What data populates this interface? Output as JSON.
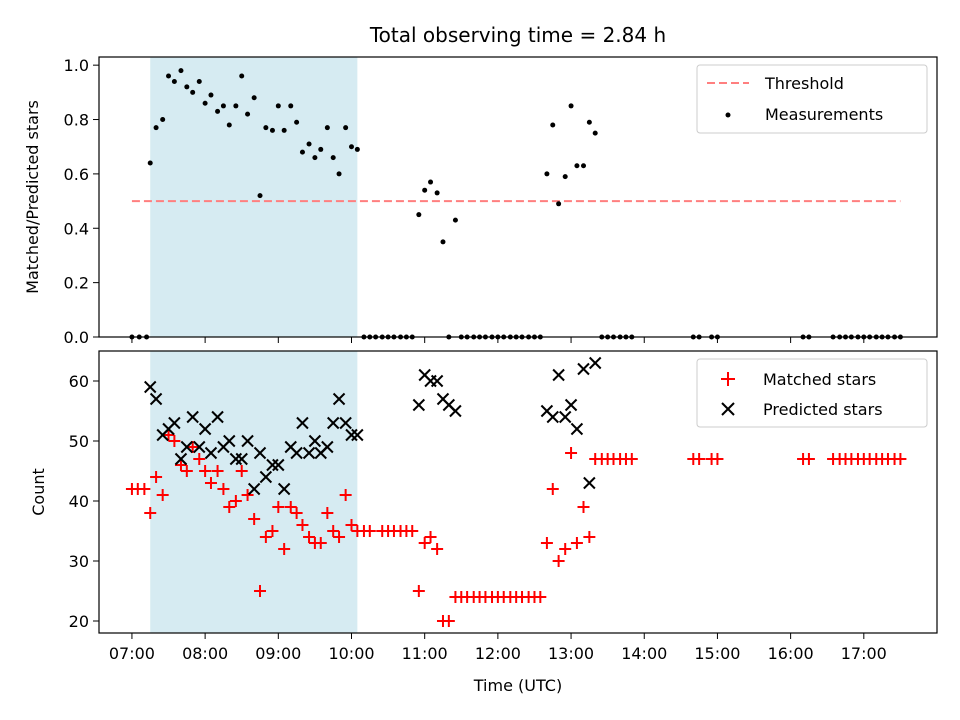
{
  "chart_data": {
    "title": "Total observing time = 2.84 h",
    "xlabel": "Time (UTC)",
    "x_ticks": [
      "07:00",
      "08:00",
      "09:00",
      "10:00",
      "11:00",
      "12:00",
      "13:00",
      "14:00",
      "15:00",
      "16:00",
      "17:00"
    ],
    "x_range_hours": [
      6.55,
      18.0
    ],
    "shaded_interval_hours": [
      7.25,
      10.08
    ],
    "colors": {
      "shade": "#add8e6",
      "threshold": "#ff7f7f",
      "matched": "#ff0000",
      "predicted": "#000000",
      "measurement": "#000000"
    },
    "panels": [
      {
        "type": "scatter",
        "ylabel": "Matched/Predicted stars",
        "ylim": [
          0,
          1.03
        ],
        "y_ticks": [
          "0.0",
          "0.2",
          "0.4",
          "0.6",
          "0.8",
          "1.0"
        ],
        "legend_position": "upper-right",
        "series": [
          {
            "name": "Threshold",
            "style": "dashed-line",
            "x": [
              7.0,
              17.5
            ],
            "y": [
              0.5,
              0.5
            ]
          },
          {
            "name": "Measurements",
            "style": "dot",
            "x": [
              7.0,
              7.1,
              7.2,
              7.25,
              7.33,
              7.42,
              7.5,
              7.58,
              7.67,
              7.75,
              7.83,
              7.92,
              8.0,
              8.08,
              8.17,
              8.25,
              8.33,
              8.42,
              8.5,
              8.58,
              8.67,
              8.75,
              8.83,
              8.92,
              9.0,
              9.08,
              9.17,
              9.25,
              9.33,
              9.42,
              9.5,
              9.58,
              9.67,
              9.75,
              9.83,
              9.92,
              10.0,
              10.08,
              10.17,
              10.25,
              10.33,
              10.42,
              10.5,
              10.58,
              10.67,
              10.75,
              10.83,
              10.92,
              11.0,
              11.08,
              11.17,
              11.25,
              11.33,
              11.42,
              11.5,
              11.58,
              11.67,
              11.75,
              11.83,
              11.92,
              12.0,
              12.08,
              12.17,
              12.25,
              12.33,
              12.42,
              12.5,
              12.58,
              12.67,
              12.75,
              12.83,
              12.92,
              13.0,
              13.08,
              13.17,
              13.25,
              13.33,
              13.42,
              13.5,
              13.58,
              13.67,
              13.75,
              13.83,
              14.67,
              14.75,
              14.92,
              15.0,
              16.17,
              16.25,
              16.58,
              16.67,
              16.75,
              16.83,
              16.92,
              17.0,
              17.08,
              17.17,
              17.25,
              17.33,
              17.42,
              17.5
            ],
            "y": [
              0,
              0,
              0,
              0.64,
              0.77,
              0.8,
              0.96,
              0.94,
              0.98,
              0.92,
              0.9,
              0.94,
              0.86,
              0.89,
              0.83,
              0.85,
              0.78,
              0.85,
              0.96,
              0.82,
              0.88,
              0.52,
              0.77,
              0.76,
              0.85,
              0.76,
              0.85,
              0.79,
              0.68,
              0.71,
              0.66,
              0.69,
              0.77,
              0.66,
              0.6,
              0.77,
              0.7,
              0.69,
              0,
              0,
              0,
              0,
              0,
              0,
              0,
              0,
              0,
              0.45,
              0.54,
              0.57,
              0.53,
              0.35,
              0,
              0.43,
              0,
              0,
              0,
              0,
              0,
              0,
              0,
              0,
              0,
              0,
              0,
              0,
              0,
              0,
              0.6,
              0.78,
              0.49,
              0.59,
              0.85,
              0.63,
              0.63,
              0.79,
              0.75,
              0,
              0,
              0,
              0,
              0,
              0,
              0,
              0,
              0,
              0,
              0,
              0,
              0,
              0,
              0,
              0,
              0,
              0,
              0,
              0,
              0,
              0,
              0,
              0
            ]
          }
        ]
      },
      {
        "type": "scatter",
        "ylabel": "Count",
        "ylim": [
          18,
          65
        ],
        "y_ticks": [
          "20",
          "30",
          "40",
          "50",
          "60"
        ],
        "legend_position": "upper-right",
        "series": [
          {
            "name": "Matched stars",
            "marker": "+",
            "x": [
              7.0,
              7.08,
              7.17,
              7.25,
              7.33,
              7.42,
              7.5,
              7.58,
              7.67,
              7.75,
              7.83,
              7.92,
              8.0,
              8.08,
              8.17,
              8.25,
              8.33,
              8.42,
              8.5,
              8.58,
              8.67,
              8.75,
              8.83,
              8.92,
              9.0,
              9.08,
              9.17,
              9.25,
              9.33,
              9.42,
              9.5,
              9.58,
              9.67,
              9.75,
              9.83,
              9.92,
              10.0,
              10.08,
              10.17,
              10.25,
              10.42,
              10.5,
              10.58,
              10.67,
              10.75,
              10.83,
              10.92,
              11.0,
              11.08,
              11.17,
              11.25,
              11.33,
              11.42,
              11.5,
              11.58,
              11.67,
              11.75,
              11.83,
              11.92,
              12.0,
              12.08,
              12.17,
              12.25,
              12.33,
              12.42,
              12.5,
              12.58,
              12.67,
              12.75,
              12.83,
              12.92,
              13.0,
              13.08,
              13.17,
              13.25,
              13.33,
              13.42,
              13.5,
              13.58,
              13.67,
              13.75,
              13.83,
              14.67,
              14.75,
              14.92,
              15.0,
              16.17,
              16.25,
              16.58,
              16.67,
              16.75,
              16.83,
              16.92,
              17.0,
              17.08,
              17.17,
              17.25,
              17.33,
              17.42,
              17.5
            ],
            "y": [
              42,
              42,
              42,
              38,
              44,
              41,
              51,
              50,
              46,
              45,
              49,
              47,
              45,
              43,
              45,
              42,
              39,
              40,
              45,
              41,
              37,
              25,
              34,
              35,
              39,
              32,
              39,
              38,
              36,
              34,
              33,
              33,
              38,
              35,
              34,
              41,
              36,
              35,
              35,
              35,
              35,
              35,
              35,
              35,
              35,
              35,
              25,
              33,
              34,
              32,
              20,
              20,
              24,
              24,
              24,
              24,
              24,
              24,
              24,
              24,
              24,
              24,
              24,
              24,
              24,
              24,
              24,
              33,
              42,
              30,
              32,
              48,
              33,
              39,
              34,
              47,
              47,
              47,
              47,
              47,
              47,
              47,
              47,
              47,
              47,
              47,
              47,
              47,
              47,
              47,
              47,
              47,
              47,
              47,
              47,
              47,
              47,
              47,
              47,
              47
            ]
          },
          {
            "name": "Predicted stars",
            "marker": "x",
            "x": [
              7.25,
              7.33,
              7.42,
              7.5,
              7.58,
              7.67,
              7.75,
              7.83,
              7.92,
              8.0,
              8.08,
              8.17,
              8.25,
              8.33,
              8.42,
              8.5,
              8.58,
              8.67,
              8.75,
              8.83,
              8.92,
              9.0,
              9.08,
              9.17,
              9.25,
              9.33,
              9.42,
              9.5,
              9.58,
              9.67,
              9.75,
              9.83,
              9.92,
              10.0,
              10.08,
              10.92,
              11.0,
              11.08,
              11.17,
              11.25,
              11.33,
              11.42,
              12.67,
              12.75,
              12.83,
              12.92,
              13.0,
              13.08,
              13.17,
              13.25,
              13.33
            ],
            "y": [
              59,
              57,
              51,
              52,
              53,
              47,
              49,
              54,
              49,
              52,
              48,
              54,
              49,
              50,
              47,
              47,
              50,
              42,
              48,
              44,
              46,
              46,
              42,
              49,
              48,
              53,
              48,
              50,
              48,
              49,
              53,
              57,
              53,
              51,
              51,
              56,
              61,
              60,
              60,
              57,
              56,
              55,
              55,
              54,
              61,
              54,
              56,
              52,
              62,
              43,
              63
            ]
          }
        ]
      }
    ]
  }
}
